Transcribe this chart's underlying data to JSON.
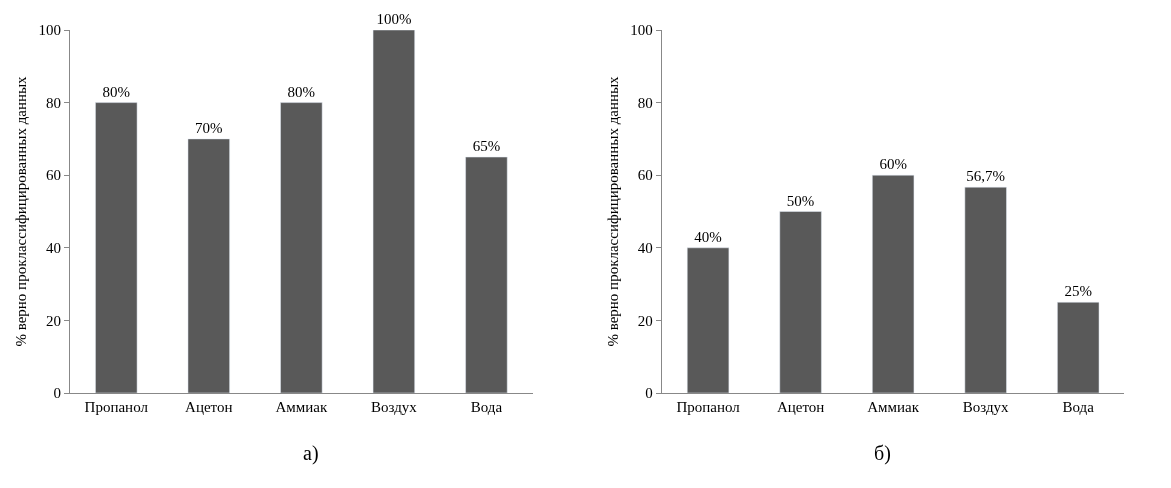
{
  "chart_data": [
    {
      "type": "bar",
      "categories": [
        "Пропанол",
        "Ацетон",
        "Аммиак",
        "Воздух",
        "Вода"
      ],
      "values": [
        80,
        70,
        80,
        100,
        65
      ],
      "value_labels": [
        "80%",
        "70%",
        "80%",
        "100%",
        "65%"
      ],
      "color": "#595959",
      "ylim": [
        0,
        100
      ],
      "yticks": [
        0,
        20,
        40,
        60,
        80,
        100
      ],
      "ylabel": "% верно проклассифицированных данных",
      "annotations": [
        "а)"
      ]
    },
    {
      "type": "bar",
      "categories": [
        "Пропанол",
        "Ацетон",
        "Аммиак",
        "Воздух",
        "Вода"
      ],
      "values": [
        40,
        50,
        60,
        56.7,
        25
      ],
      "value_labels": [
        "40%",
        "50%",
        "60%",
        "56,7%",
        "25%"
      ],
      "color": "#595959",
      "ylim": [
        0,
        100
      ],
      "yticks": [
        0,
        20,
        40,
        60,
        80,
        100
      ],
      "ylabel": "% верно проклассифицированных данных",
      "annotations": [
        "б)"
      ]
    }
  ]
}
